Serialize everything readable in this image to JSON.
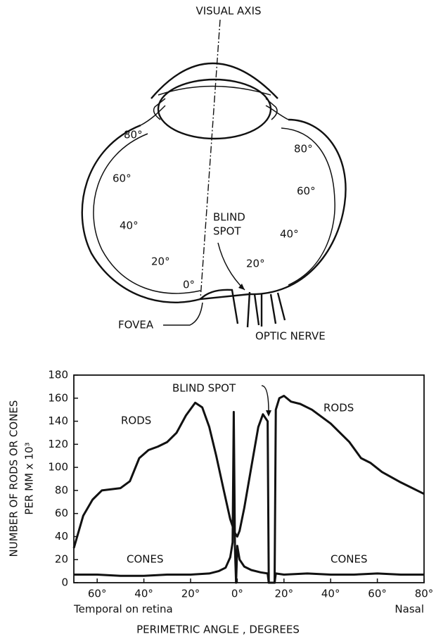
{
  "diagram": {
    "visual_axis": "VISUAL AXIS",
    "left_angles": [
      "80°",
      "60°",
      "40°",
      "20°"
    ],
    "right_angles": [
      "80°",
      "60°",
      "40°",
      "20°"
    ],
    "zero": "0°",
    "blind_spot": [
      "BLIND",
      "SPOT"
    ],
    "fovea": "FOVEA",
    "optic_nerve": "OPTIC NERVE"
  },
  "chart_data": {
    "type": "line",
    "ylabel": [
      "NUMBER OF RODS OR CONES",
      "PER MM x 10³"
    ],
    "xlabel": "PERIMETRIC ANGLE , DEGREES",
    "x_side_labels": [
      "Temporal on retina",
      "Nasal"
    ],
    "annotation": "BLIND SPOT",
    "xlim": [
      -70,
      80
    ],
    "ylim": [
      0,
      180
    ],
    "yticks": [
      0,
      20,
      40,
      60,
      80,
      100,
      120,
      140,
      160,
      180
    ],
    "xticks": [
      {
        "value": -60,
        "label": "60°"
      },
      {
        "value": -40,
        "label": "40°"
      },
      {
        "value": -20,
        "label": "20°"
      },
      {
        "value": 0,
        "label": "0°"
      },
      {
        "value": 20,
        "label": "20°"
      },
      {
        "value": 40,
        "label": "40°"
      },
      {
        "value": 60,
        "label": "60°"
      },
      {
        "value": 80,
        "label": "80°"
      }
    ],
    "grid": false,
    "series": [
      {
        "name": "RODS",
        "color": "#111111",
        "x": [
          -70,
          -66,
          -62,
          -58,
          -54,
          -50,
          -46,
          -42,
          -38,
          -34,
          -30,
          -26,
          -22,
          -18,
          -15,
          -12,
          -9,
          -6,
          -3,
          -1,
          0,
          1,
          3,
          6,
          9,
          11,
          13,
          13.5,
          16,
          16.5,
          18,
          20,
          23,
          27,
          32,
          40,
          48,
          53,
          57,
          62,
          70,
          80
        ],
        "values": [
          30,
          58,
          72,
          80,
          81,
          82,
          88,
          108,
          115,
          118,
          122,
          130,
          145,
          156,
          152,
          135,
          110,
          82,
          55,
          43,
          40,
          45,
          65,
          100,
          135,
          146,
          140,
          0,
          0,
          150,
          160,
          162,
          157,
          155,
          150,
          138,
          122,
          108,
          104,
          96,
          87,
          77
        ]
      },
      {
        "name": "CONES",
        "color": "#111111",
        "x": [
          -70,
          -60,
          -50,
          -40,
          -30,
          -20,
          -12,
          -8,
          -5,
          -3,
          -2,
          -1.5,
          -1,
          -0.5,
          0,
          1,
          3,
          6,
          10,
          13,
          13.5,
          16,
          16.5,
          20,
          30,
          40,
          50,
          60,
          70,
          80
        ],
        "values": [
          7,
          7,
          6,
          6,
          7,
          7,
          8,
          10,
          13,
          22,
          35,
          148,
          30,
          0,
          32,
          20,
          14,
          11,
          9,
          8,
          0,
          0,
          8,
          7,
          8,
          7,
          7,
          8,
          7,
          7
        ]
      }
    ]
  }
}
